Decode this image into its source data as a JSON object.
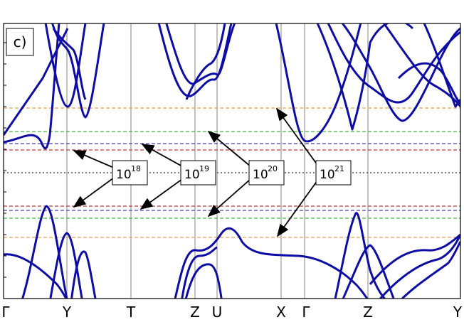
{
  "panel_label": "c)",
  "k_points": [
    "Γ",
    "Y",
    "T",
    "Z",
    "U",
    "X",
    "Γ",
    "Z",
    "Y"
  ],
  "annotations": [
    {
      "base": "10",
      "exponent": "18"
    },
    {
      "base": "10",
      "exponent": "19"
    },
    {
      "base": "10",
      "exponent": "20"
    },
    {
      "base": "10",
      "exponent": "21"
    }
  ]
}
